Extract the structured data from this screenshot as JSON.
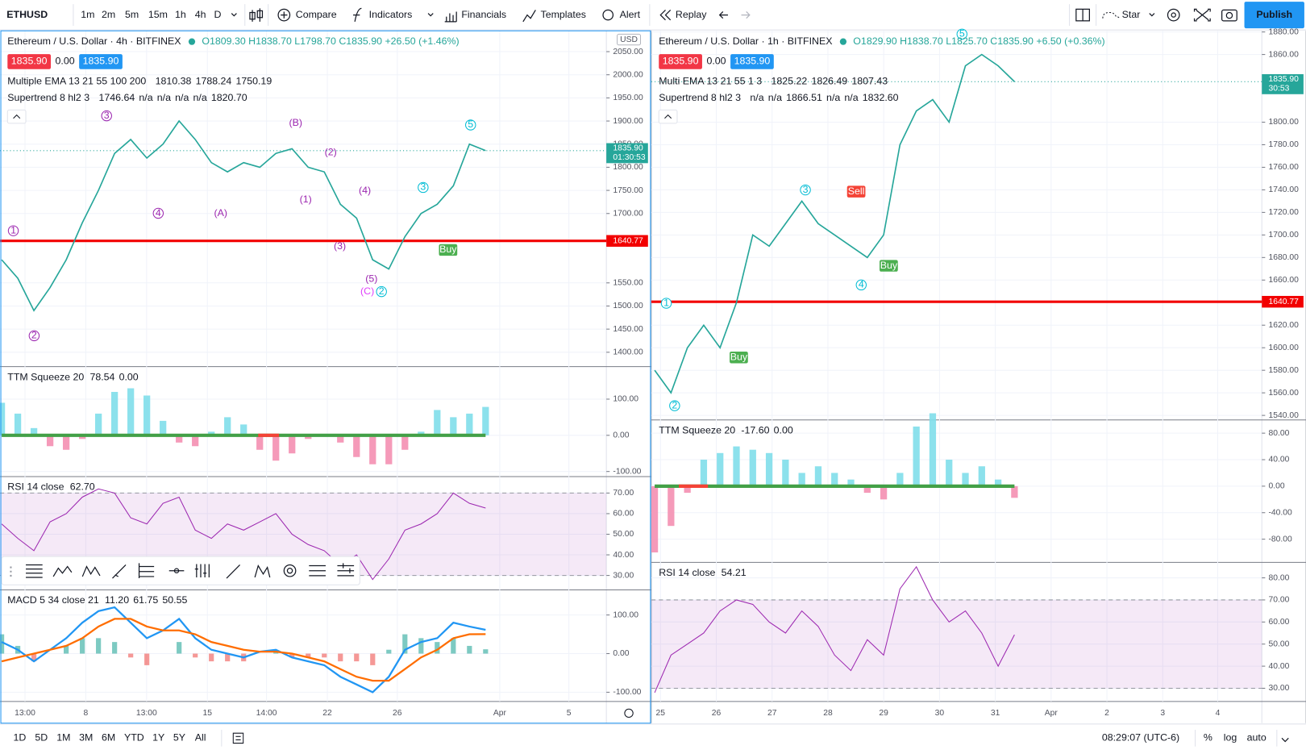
{
  "toolbar": {
    "symbol": "ETHUSD",
    "intervals": [
      "1m",
      "2m",
      "5m",
      "15m",
      "1h",
      "4h",
      "D"
    ],
    "compare": "Compare",
    "indicators": "Indicators",
    "financials": "Financials",
    "templates": "Templates",
    "alert": "Alert",
    "replay": "Replay",
    "star": "Star",
    "publish": "Publish"
  },
  "charts": [
    {
      "title": "Ethereum / U.S. Dollar · 4h · BITFINEX",
      "ohlc": "O1809.30 H1838.70 L1798.70 C1835.90 +26.50 (+1.46%)",
      "bid": "1835.90",
      "spread": "0.00",
      "ask": "1835.90",
      "currency": "USD",
      "ema": {
        "name": "Multiple EMA 13 21 55 100 200",
        "values": [
          "1810.38",
          "1788.24",
          "1750.19"
        ]
      },
      "supertrend": {
        "name": "Supertrend 8 hl2 3",
        "values": [
          "1746.64",
          "n/a",
          "n/a",
          "n/a",
          "n/a",
          "1820.70"
        ]
      },
      "annotations": [
        "1",
        "2",
        "3",
        "4",
        "(A)",
        "(B)",
        "(2)",
        "(1)",
        "(3)",
        "(4)",
        "(5)",
        "(C)",
        "2",
        "3",
        "5",
        "Buy"
      ],
      "price": {
        "ylim": [
          1369,
          2095
        ],
        "yticks": [
          {
            "value": 2050,
            "label": "2050.00"
          },
          {
            "value": 2000,
            "label": "2000.00"
          },
          {
            "value": 1950,
            "label": "1950.00"
          },
          {
            "value": 1900,
            "label": "1900.00"
          },
          {
            "value": 1850,
            "label": "1850.00"
          },
          {
            "value": 1800,
            "label": "1800.00"
          },
          {
            "value": 1750,
            "label": "1750.00"
          },
          {
            "value": 1700,
            "label": "1700.00"
          },
          {
            "value": 1550,
            "label": "1550.00"
          },
          {
            "value": 1500,
            "label": "1500.00"
          },
          {
            "value": 1450,
            "label": "1450.00"
          },
          {
            "value": 1400,
            "label": "1400.00"
          }
        ],
        "close": [
          1600,
          1560,
          1490,
          1540,
          1600,
          1680,
          1750,
          1830,
          1860,
          1820,
          1850,
          1900,
          1860,
          1810,
          1790,
          1810,
          1800,
          1830,
          1840,
          1800,
          1790,
          1720,
          1690,
          1600,
          1580,
          1650,
          1700,
          1720,
          1760,
          1850,
          1835.9
        ],
        "last": {
          "value": 1835.9,
          "label": "1835.90"
        },
        "countdown": "01:30:53",
        "level": {
          "value": 1640.77,
          "label": "1640.77"
        }
      },
      "ttm": {
        "name": "TTM Squeeze 20",
        "values": [
          "78.54",
          "0.00"
        ],
        "ylim": [
          -114,
          190
        ],
        "yticks": [
          {
            "value": 100,
            "label": "100.00"
          },
          {
            "value": 0,
            "label": "0.00"
          },
          {
            "value": -100,
            "label": "-100.00"
          }
        ],
        "hist": [
          90,
          60,
          20,
          -30,
          -40,
          -10,
          60,
          120,
          130,
          110,
          40,
          -20,
          -30,
          10,
          50,
          30,
          -40,
          -70,
          -50,
          -10,
          0,
          -20,
          -60,
          -80,
          -80,
          -40,
          10,
          70,
          50,
          60,
          78.54
        ]
      },
      "rsi": {
        "name": "RSI 14 close",
        "value": "62.70",
        "ylim": [
          23,
          78
        ],
        "band": [
          30,
          70
        ],
        "yticks": [
          {
            "value": 70,
            "label": "70.00"
          },
          {
            "value": 60,
            "label": "60.00"
          },
          {
            "value": 50,
            "label": "50.00"
          },
          {
            "value": 40,
            "label": "40.00"
          },
          {
            "value": 30,
            "label": "30.00"
          }
        ],
        "values": [
          55,
          48,
          42,
          56,
          60,
          68,
          72,
          70,
          58,
          55,
          65,
          68,
          52,
          48,
          55,
          52,
          56,
          60,
          50,
          45,
          42,
          35,
          40,
          28,
          38,
          52,
          55,
          60,
          70,
          65,
          62.7
        ]
      },
      "macd": {
        "name": "MACD 5 34 close 21",
        "values": [
          "11.20",
          "61.75",
          "50.55"
        ],
        "ylim": [
          -124,
          165
        ],
        "yticks": [
          {
            "value": 100,
            "label": "100.00"
          },
          {
            "value": 0,
            "label": "0.00"
          },
          {
            "value": -100,
            "label": "-100.00"
          }
        ],
        "macd": [
          30,
          10,
          -20,
          10,
          40,
          80,
          110,
          120,
          80,
          40,
          60,
          90,
          40,
          10,
          0,
          -10,
          5,
          10,
          -10,
          -20,
          -30,
          -60,
          -80,
          -100,
          -60,
          10,
          30,
          40,
          80,
          70,
          61.75
        ],
        "signal": [
          -20,
          -10,
          0,
          10,
          20,
          40,
          70,
          90,
          90,
          70,
          60,
          60,
          50,
          30,
          20,
          10,
          5,
          5,
          0,
          -10,
          -20,
          -40,
          -60,
          -70,
          -70,
          -40,
          -10,
          10,
          40,
          50,
          50.55
        ],
        "hist": [
          50,
          20,
          -20,
          0,
          20,
          40,
          40,
          30,
          -10,
          -30,
          0,
          30,
          -10,
          -20,
          -20,
          -20,
          0,
          5,
          -10,
          -10,
          -10,
          -20,
          -20,
          -30,
          10,
          50,
          40,
          30,
          40,
          20,
          11.2
        ]
      },
      "xticks": [
        "13:00",
        "8",
        "13:00",
        "15",
        "14:00",
        "22",
        "26",
        "Apr",
        "5"
      ]
    },
    {
      "title": "Ethereum / U.S. Dollar · 1h · BITFINEX",
      "ohlc": "O1829.90 H1838.70 L1825.70 C1835.90 +6.50 (+0.36%)",
      "bid": "1835.90",
      "spread": "0.00",
      "ask": "1835.90",
      "ema": {
        "name": "Multi EMA 13 21 55 1 3",
        "values": [
          "1825.22",
          "1826.49",
          "1807.43"
        ]
      },
      "supertrend": {
        "name": "Supertrend 8 hl2 3",
        "values": [
          "n/a",
          "n/a",
          "1866.51",
          "n/a",
          "n/a",
          "1832.60"
        ]
      },
      "annotations": [
        "1",
        "2",
        "3",
        "4",
        "5",
        "Sell",
        "Buy",
        "Buy"
      ],
      "price": {
        "ylim": [
          1536,
          1881
        ],
        "yticks": [
          {
            "value": 1880,
            "label": "1880.00"
          },
          {
            "value": 1860,
            "label": "1860.00"
          },
          {
            "value": 1800,
            "label": "1800.00"
          },
          {
            "value": 1780,
            "label": "1780.00"
          },
          {
            "value": 1760,
            "label": "1760.00"
          },
          {
            "value": 1740,
            "label": "1740.00"
          },
          {
            "value": 1720,
            "label": "1720.00"
          },
          {
            "value": 1700,
            "label": "1700.00"
          },
          {
            "value": 1680,
            "label": "1680.00"
          },
          {
            "value": 1660,
            "label": "1660.00"
          },
          {
            "value": 1620,
            "label": "1620.00"
          },
          {
            "value": 1600,
            "label": "1600.00"
          },
          {
            "value": 1580,
            "label": "1580.00"
          },
          {
            "value": 1560,
            "label": "1560.00"
          },
          {
            "value": 1540,
            "label": "1540.00"
          }
        ],
        "close": [
          1580,
          1560,
          1600,
          1620,
          1600,
          1640,
          1700,
          1690,
          1710,
          1730,
          1710,
          1700,
          1690,
          1680,
          1700,
          1780,
          1810,
          1820,
          1800,
          1850,
          1860,
          1850,
          1835.9
        ],
        "last": {
          "value": 1835.9,
          "label": "1835.90"
        },
        "countdown": "30:53",
        "level": {
          "value": 1640.77,
          "label": "1640.77"
        }
      },
      "ttm": {
        "name": "TTM Squeeze 20",
        "values": [
          "-17.60",
          "0.00"
        ],
        "ylim": [
          -115,
          100
        ],
        "yticks": [
          {
            "value": 80,
            "label": "80.00"
          },
          {
            "value": 40,
            "label": "40.00"
          },
          {
            "value": 0,
            "label": "0.00"
          },
          {
            "value": -40,
            "label": "-40.00"
          },
          {
            "value": -80,
            "label": "-80.00"
          }
        ],
        "hist": [
          -100,
          -60,
          -10,
          40,
          50,
          60,
          55,
          50,
          40,
          20,
          30,
          20,
          10,
          -10,
          -20,
          20,
          90,
          110,
          40,
          20,
          30,
          10,
          -17.6
        ]
      },
      "rsi": {
        "name": "RSI 14 close",
        "value": "54.21",
        "ylim": [
          24,
          87
        ],
        "band": [
          30,
          70
        ],
        "yticks": [
          {
            "value": 80,
            "label": "80.00"
          },
          {
            "value": 70,
            "label": "70.00"
          },
          {
            "value": 60,
            "label": "60.00"
          },
          {
            "value": 50,
            "label": "50.00"
          },
          {
            "value": 40,
            "label": "40.00"
          },
          {
            "value": 30,
            "label": "30.00"
          }
        ],
        "values": [
          28,
          45,
          50,
          55,
          65,
          70,
          68,
          60,
          55,
          65,
          58,
          45,
          38,
          52,
          45,
          75,
          85,
          70,
          60,
          65,
          55,
          40,
          54.21
        ]
      },
      "xticks": [
        "25",
        "26",
        "27",
        "28",
        "29",
        "30",
        "31",
        "Apr",
        "2",
        "3",
        "4"
      ]
    }
  ],
  "bottom": {
    "ranges": [
      "1D",
      "5D",
      "1M",
      "3M",
      "6M",
      "YTD",
      "1Y",
      "5Y",
      "All"
    ],
    "clock": "08:29:07 (UTC-6)",
    "percent": "%",
    "log": "log",
    "auto": "auto"
  }
}
